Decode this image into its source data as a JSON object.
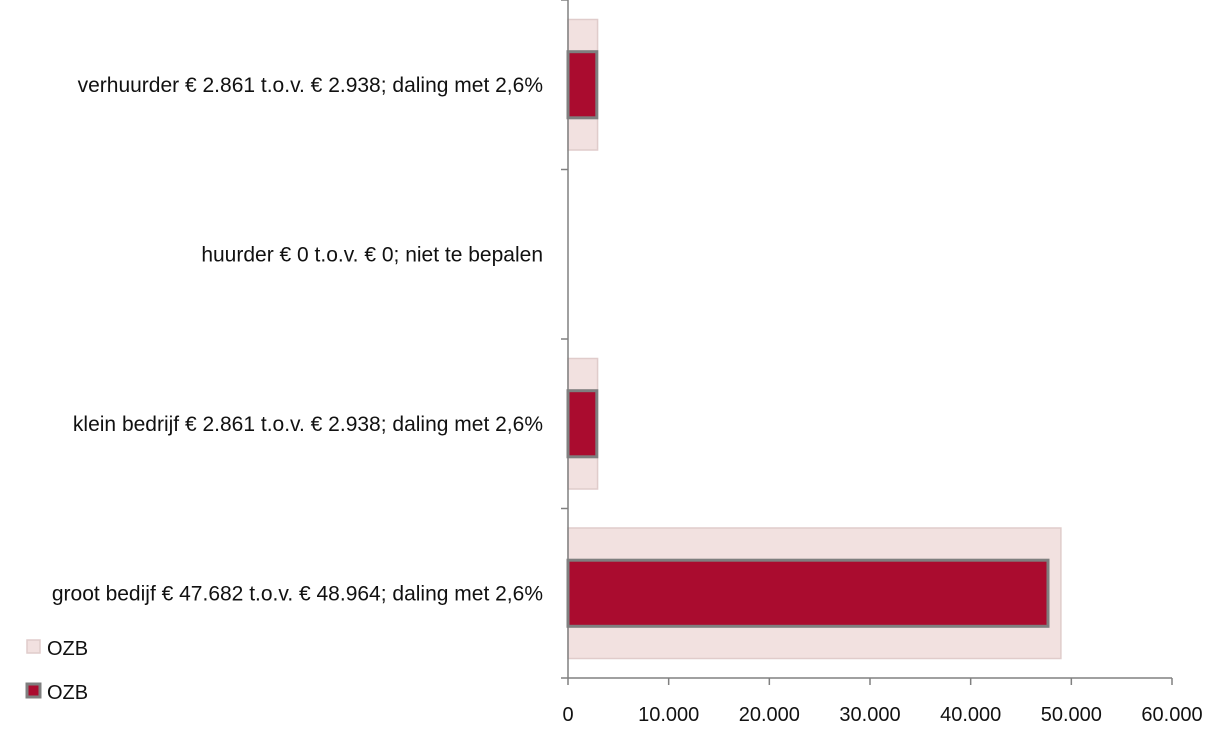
{
  "chart_data": {
    "type": "bar",
    "orientation": "horizontal",
    "categories": [
      "verhuurder € 2.861 t.o.v. € 2.938;  daling met 2,6%",
      "huurder € 0 t.o.v. € 0;  niet te bepalen",
      "klein bedrijf € 2.861 t.o.v. € 2.938; daling met 2,6%",
      "groot bedijf € 47.682 t.o.v. € 48.964; daling met 2,6%"
    ],
    "series": [
      {
        "name": "OZB",
        "role": "background",
        "values": [
          2938,
          0,
          2938,
          48964
        ],
        "color": "#f2e1e0",
        "stroke": "#e0cccb"
      },
      {
        "name": "OZB",
        "role": "foreground",
        "values": [
          2861,
          0,
          2861,
          47682
        ],
        "color": "#aa0c2f",
        "stroke": "#7f7f7f"
      }
    ],
    "xlim": [
      0,
      60000
    ],
    "x_ticks": [
      "0",
      "10.000",
      "20.000",
      "30.000",
      "40.000",
      "50.000",
      "60.000"
    ],
    "x_tick_values": [
      0,
      10000,
      20000,
      30000,
      40000,
      50000,
      60000
    ],
    "grid": false,
    "legend_position": "bottom-left",
    "title": "",
    "xlabel": "",
    "ylabel": ""
  }
}
